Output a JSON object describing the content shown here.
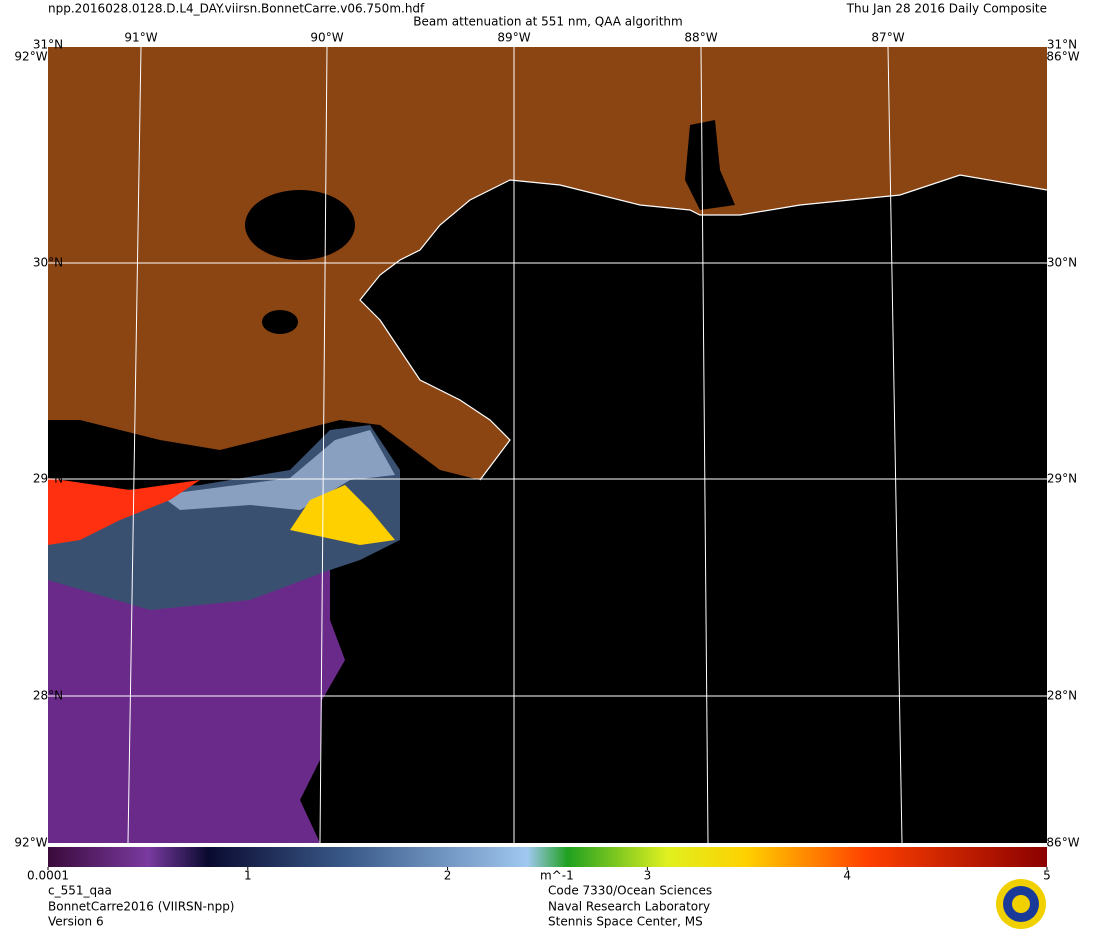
{
  "header": {
    "filename": "npp.2016028.0128.D.L4_DAY.viirsn.BonnetCarre.v06.750m.hdf",
    "title": "Beam attenuation at 551 nm, QAA algorithm",
    "date": "Thu Jan 28 2016 Daily Composite"
  },
  "map": {
    "lon_labels": [
      "91°W",
      "90°W",
      "89°W",
      "88°W",
      "87°W"
    ],
    "lat_labels": [
      "31°N",
      "30°N",
      "29°N",
      "28°N"
    ],
    "corner_labels": [
      "92°W",
      "86°W"
    ]
  },
  "colorbar": {
    "ticks": [
      0.0001,
      1,
      2,
      3,
      4,
      5
    ],
    "unit": "m^-1"
  },
  "footer": {
    "left": [
      "c_551_qaa",
      "BonnetCarre2016 (VIIRSN-npp)",
      "Version 6"
    ],
    "center": [
      "Code 7330/Ocean Sciences",
      "Naval Research Laboratory",
      "Stennis Space Center, MS"
    ]
  }
}
